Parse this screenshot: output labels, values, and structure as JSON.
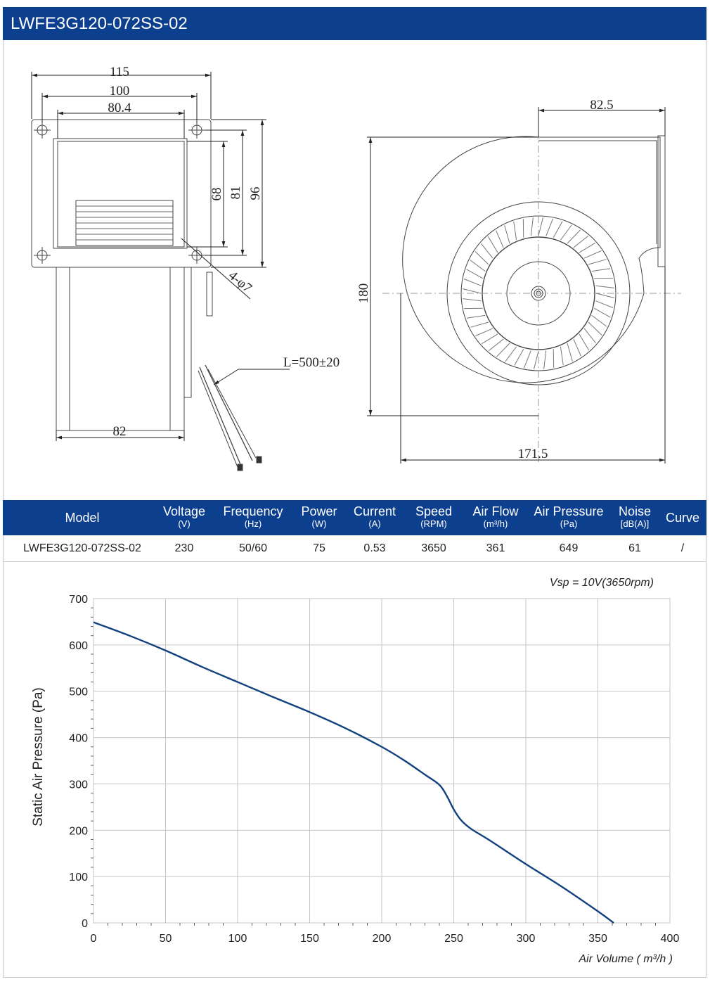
{
  "title": "LWFE3G120-072SS-02",
  "drawing": {
    "dims": {
      "w115": "115",
      "w100": "100",
      "w80": "80.4",
      "h68": "68",
      "h81": "81",
      "h96": "96",
      "holes": "4-φ7",
      "lead": "L=500±20",
      "w82": "82",
      "w82_5": "82.5",
      "h180": "180",
      "w171_5": "171.5"
    }
  },
  "spec_table": {
    "headers": [
      {
        "label": "Model",
        "unit": ""
      },
      {
        "label": "Voltage",
        "unit": "(V)"
      },
      {
        "label": "Frequency",
        "unit": "(Hz)"
      },
      {
        "label": "Power",
        "unit": "(W)"
      },
      {
        "label": "Current",
        "unit": "(A)"
      },
      {
        "label": "Speed",
        "unit": "(RPM)"
      },
      {
        "label": "Air Flow",
        "unit": "(m³/h)"
      },
      {
        "label": "Air Pressure",
        "unit": "(Pa)"
      },
      {
        "label": "Noise",
        "unit": "[dB(A)]"
      },
      {
        "label": "Curve",
        "unit": ""
      }
    ],
    "row": [
      "LWFE3G120-072SS-02",
      "230",
      "50/60",
      "75",
      "0.53",
      "3650",
      "361",
      "649",
      "61",
      "/"
    ]
  },
  "chart_data": {
    "type": "line",
    "annotation": "Vsp = 10V(3650rpm)",
    "xlabel": "Air Volume ( m³/h )",
    "ylabel": "Static Air Pressure  (Pa)",
    "xlim": [
      0,
      400
    ],
    "ylim": [
      0,
      700
    ],
    "xticks": [
      "0",
      "50",
      "100",
      "150",
      "200",
      "250",
      "300",
      "350",
      "400"
    ],
    "yticks": [
      "0",
      "100",
      "200",
      "300",
      "400",
      "500",
      "600",
      "700"
    ],
    "grid": true,
    "line_color": "#12417f",
    "series": [
      {
        "x": [
          0,
          25,
          50,
          75,
          100,
          125,
          150,
          175,
          200,
          215,
          230,
          240,
          245,
          250,
          255,
          262,
          275,
          300,
          325,
          350,
          361
        ],
        "y": [
          649,
          620,
          588,
          553,
          520,
          487,
          455,
          420,
          380,
          352,
          320,
          298,
          275,
          245,
          222,
          203,
          178,
          127,
          78,
          25,
          0
        ]
      }
    ]
  }
}
